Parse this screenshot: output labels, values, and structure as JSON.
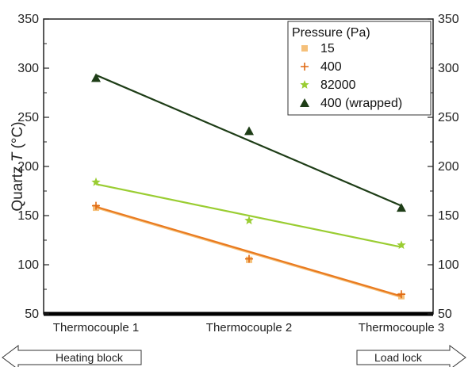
{
  "chart_data": {
    "type": "scatter",
    "categories": [
      "Thermocouple 1",
      "Thermocouple 2",
      "Thermocouple 3"
    ],
    "ylabel_prefix": "Quartz ",
    "ylabel_italic": "T",
    "ylabel_suffix": " (°C)",
    "ylim": [
      50,
      350
    ],
    "yticks": [
      50,
      100,
      150,
      200,
      250,
      300,
      350
    ],
    "legend": {
      "title": "Pressure (Pa)",
      "position": "top-right"
    },
    "series": [
      {
        "name": "15",
        "marker": "square",
        "color": "#F5C07A",
        "line_color": "#F5C07A",
        "values": [
          158,
          105,
          68
        ],
        "fit": [
          158,
          67
        ]
      },
      {
        "name": "400",
        "marker": "plus",
        "color": "#E06A14",
        "line_color": "#E97A1E",
        "values": [
          160,
          106,
          70
        ],
        "fit": [
          159,
          68
        ]
      },
      {
        "name": "82000",
        "marker": "star",
        "color": "#9ACD32",
        "line_color": "#9ACD32",
        "values": [
          184,
          145,
          120
        ],
        "fit": [
          182,
          118
        ]
      },
      {
        "name": "400 (wrapped)",
        "marker": "triangle",
        "color": "#1E3D17",
        "line_color": "#1E3D17",
        "values": [
          290,
          236,
          158
        ],
        "fit": [
          293,
          160
        ]
      }
    ],
    "arrows": {
      "left": "Heating block",
      "right": "Load lock"
    }
  }
}
